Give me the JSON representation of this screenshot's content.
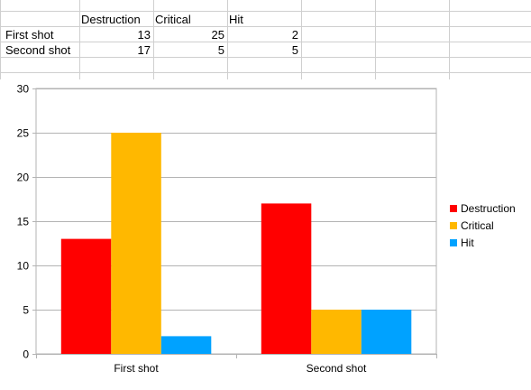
{
  "spreadsheet": {
    "header_row": [
      "",
      "Destruction",
      "Critical",
      "Hit"
    ],
    "rows": [
      {
        "label": "First shot",
        "values": [
          13,
          25,
          2
        ]
      },
      {
        "label": "Second shot",
        "values": [
          17,
          5,
          5
        ]
      }
    ]
  },
  "chart_data": {
    "type": "bar",
    "categories": [
      "First shot",
      "Second shot"
    ],
    "series": [
      {
        "name": "Destruction",
        "values": [
          13,
          17
        ],
        "color": "#ff0000"
      },
      {
        "name": "Critical",
        "values": [
          25,
          5
        ],
        "color": "#ffb800"
      },
      {
        "name": "Hit",
        "values": [
          2,
          5
        ],
        "color": "#00a2ff"
      }
    ],
    "ylim": [
      0,
      30
    ],
    "yticks": [
      0,
      5,
      10,
      15,
      20,
      25,
      30
    ],
    "grid": true,
    "legend_position": "right",
    "title": "",
    "xlabel": "",
    "ylabel": ""
  }
}
